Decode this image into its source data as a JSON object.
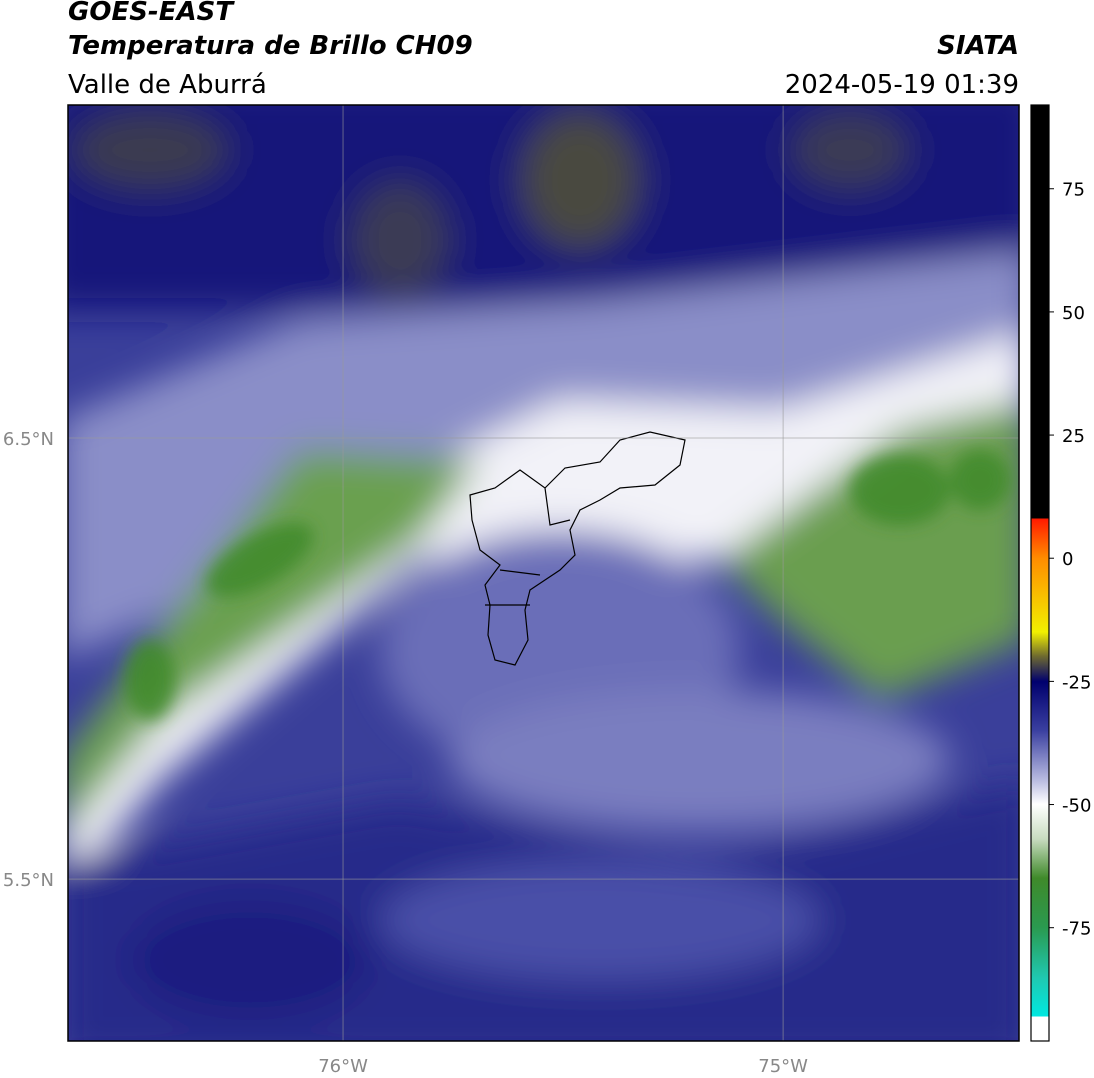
{
  "header": {
    "title": "GOES-EAST",
    "subtitle": "Temperatura de Brillo CH09",
    "region": "Valle de Aburrá",
    "source": "SIATA",
    "datetime": "2024-05-19 01:39"
  },
  "map": {
    "xlim": [
      -76.625,
      -74.464
    ],
    "ylim": [
      5.133,
      7.255
    ],
    "xticks": [
      {
        "value": -76,
        "label": "76°W"
      },
      {
        "value": -75,
        "label": "75°W"
      }
    ],
    "yticks": [
      {
        "value": 6.5,
        "label": "6.5°N"
      },
      {
        "value": 5.5,
        "label": "5.5°N"
      }
    ],
    "grid": true
  },
  "colorbar": {
    "lim": [
      -98,
      92
    ],
    "ticks": [
      75,
      50,
      25,
      0,
      -25,
      -50,
      -75
    ]
  }
}
